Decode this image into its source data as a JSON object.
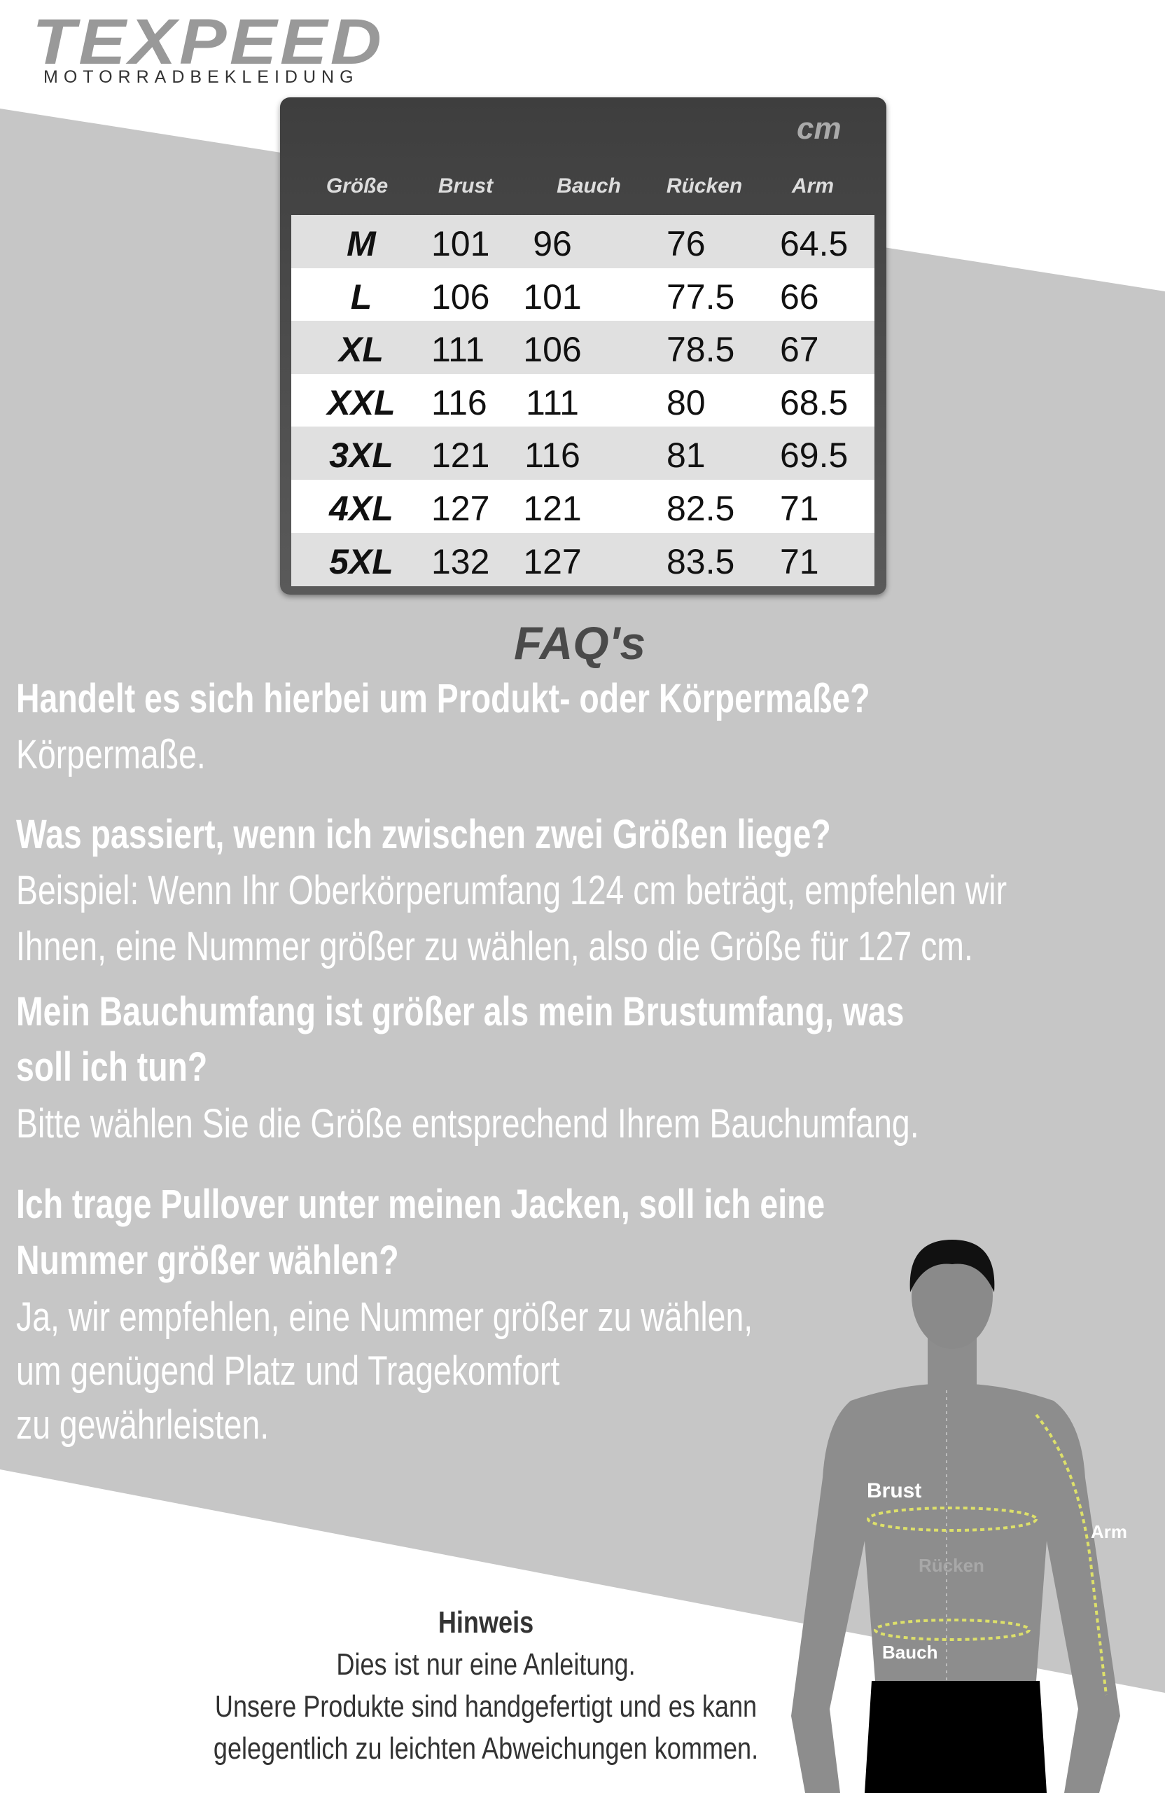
{
  "header": {
    "brand": "TEXPEED",
    "subtitle": "MOTORRADBEKLEIDUNG"
  },
  "table": {
    "unit": "cm",
    "columns": [
      "Größe",
      "Brust",
      "Bauch",
      "Rücken",
      "Arm"
    ],
    "rows": [
      [
        "M",
        101,
        96,
        76,
        64.5
      ],
      [
        "L",
        106,
        101,
        77.5,
        66
      ],
      [
        "XL",
        111,
        106,
        78.5,
        67
      ],
      [
        "XXL",
        116,
        111,
        80,
        68.5
      ],
      [
        "3XL",
        121,
        116,
        81,
        69.5
      ],
      [
        "4XL",
        127,
        121,
        82.5,
        71
      ],
      [
        "5XL",
        132,
        127,
        83.5,
        71
      ]
    ]
  },
  "faq": {
    "title": "FAQ's",
    "items": [
      {
        "question": [
          "Handelt es sich hierbei um Produkt- oder Körpermaße?"
        ],
        "answer": [
          "Körpermaße."
        ]
      },
      {
        "question": [
          "Was passiert, wenn ich zwischen zwei Größen liege?"
        ],
        "answer": [
          "Beispiel: Wenn Ihr Oberkörperumfang 124 cm beträgt, empfehlen wir",
          "Ihnen, eine Nummer größer zu wählen, also die Größe für 127 cm."
        ]
      },
      {
        "question": [
          "Mein Bauchumfang ist größer als mein Brustumfang, was",
          "soll ich tun?"
        ],
        "answer": [
          "Bitte wählen Sie die Größe entsprechend Ihrem Bauchumfang."
        ]
      },
      {
        "question": [
          "Ich trage Pullover unter meinen Jacken, soll ich eine",
          "Nummer größer wählen?"
        ],
        "answer": [
          "Ja, wir empfehlen, eine Nummer größer zu wählen,",
          "um genügend Platz und Tragekomfort",
          "zu gewährleisten."
        ]
      }
    ]
  },
  "figure": {
    "labels": {
      "brust": "Brust",
      "arm": "Arm",
      "ruecken": "Rücken",
      "bauch": "Bauch"
    }
  },
  "note": {
    "title": "Hinweis",
    "lines": [
      "Dies ist nur eine Anleitung.",
      "Unsere Produkte sind handgefertigt und es kann",
      "gelegentlich zu leichten Abweichungen kommen."
    ]
  }
}
